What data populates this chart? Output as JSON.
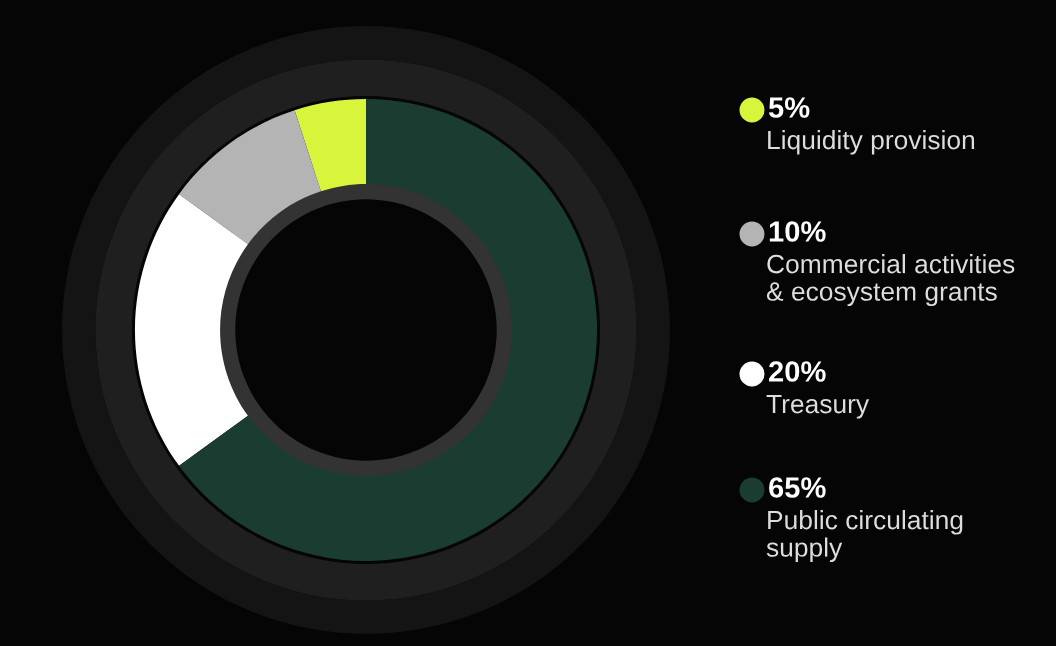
{
  "chart_data": {
    "type": "donut",
    "categories": [
      "Liquidity provision",
      "Commercial activities\n& ecosystem grants",
      "Treasury",
      "Public circulating\nsupply"
    ],
    "values": [
      5,
      10,
      20,
      65
    ],
    "value_labels": [
      "5%",
      "10%",
      "20%",
      "65%"
    ],
    "colors": [
      "#d8f53c",
      "#b4b4b4",
      "#ffffff",
      "#1b3d31"
    ],
    "legend": "right"
  }
}
